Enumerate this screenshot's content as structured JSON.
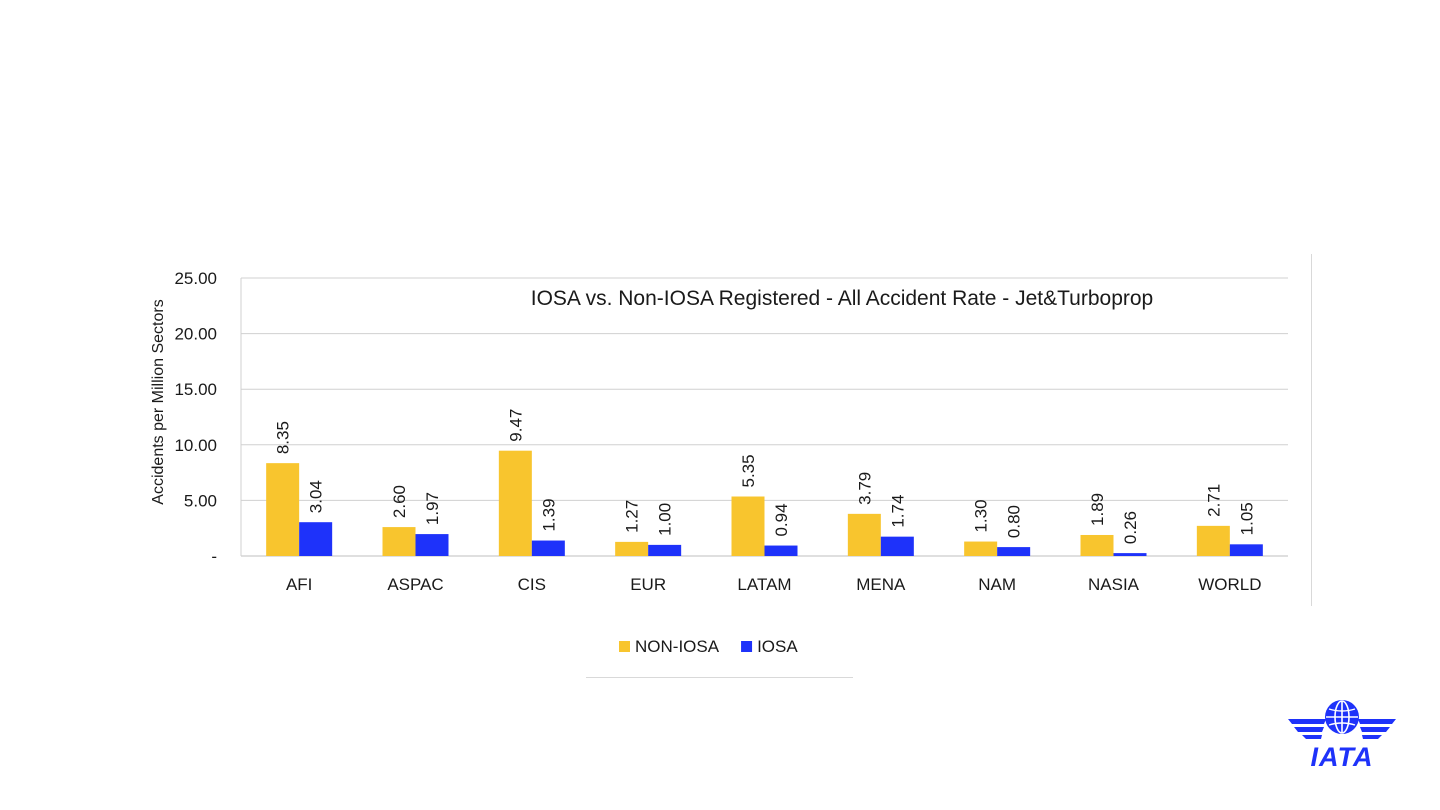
{
  "chart_data": {
    "type": "bar",
    "title": "IOSA vs. Non-IOSA Registered - All Accident Rate - Jet&Turboprop",
    "ylabel": "Accidents per Million Sectors",
    "xlabel": "",
    "categories": [
      "AFI",
      "ASPAC",
      "CIS",
      "EUR",
      "LATAM",
      "MENA",
      "NAM",
      "NASIA",
      "WORLD"
    ],
    "series": [
      {
        "name": "NON-IOSA",
        "color": "#f8c52e",
        "values": [
          8.35,
          2.6,
          9.47,
          1.27,
          5.35,
          3.79,
          1.3,
          1.89,
          2.71
        ],
        "labels": [
          "8.35",
          "2.60",
          "9.47",
          "1.27",
          "5.35",
          "3.79",
          "1.30",
          "1.89",
          "2.71"
        ]
      },
      {
        "name": "IOSA",
        "color": "#1e32fa",
        "values": [
          3.04,
          1.97,
          1.39,
          1.0,
          0.94,
          1.74,
          0.8,
          0.26,
          1.05
        ],
        "labels": [
          "3.04",
          "1.97",
          "1.39",
          "1.00",
          "0.94",
          "1.74",
          "0.80",
          "0.26",
          "1.05"
        ]
      }
    ],
    "ylim": [
      0,
      25
    ],
    "yticks": [
      0,
      5,
      10,
      15,
      20,
      25
    ],
    "ytick_labels": [
      "-",
      "5.00",
      "10.00",
      "15.00",
      "20.00",
      "25.00"
    ],
    "grid": true,
    "legend_position": "bottom"
  },
  "logo": {
    "text": "IATA",
    "color": "#1e32fa"
  }
}
